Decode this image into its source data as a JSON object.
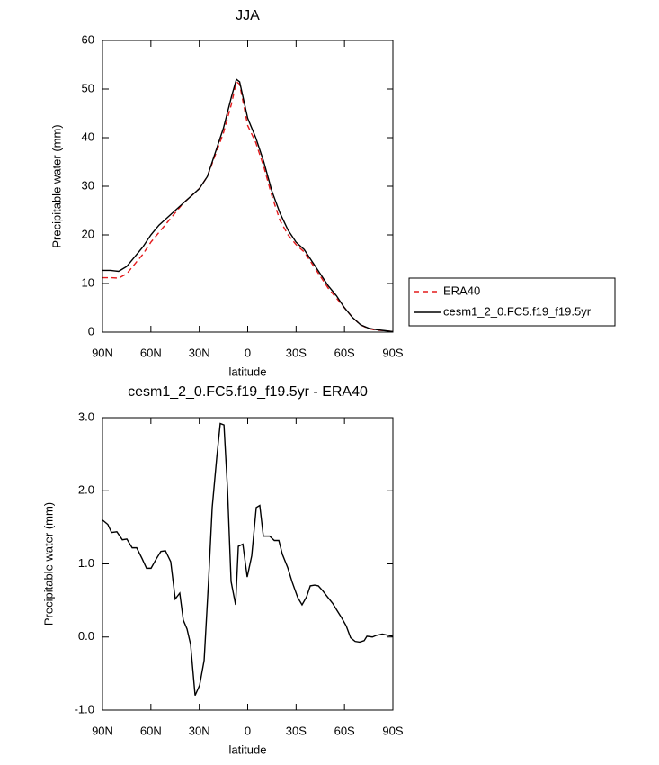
{
  "chart_data": [
    {
      "type": "line",
      "title": "JJA",
      "x_label": "latitude",
      "y_label": "Precipitable water (mm)",
      "x": [
        90,
        85,
        80,
        75,
        70,
        65,
        60,
        55,
        50,
        45,
        40,
        35,
        30,
        25,
        20,
        15,
        10,
        7,
        5,
        0,
        -5,
        -10,
        -15,
        -20,
        -25,
        -30,
        -35,
        -40,
        -45,
        -50,
        -55,
        -60,
        -65,
        -70,
        -75,
        -80,
        -85,
        -90
      ],
      "series": [
        {
          "name": "ERA40",
          "color": "#e41a1c",
          "dash": "dashed",
          "values": [
            11.2,
            11.2,
            11.1,
            12,
            14,
            16,
            18.5,
            20.5,
            22.5,
            24.5,
            26.5,
            28,
            29.5,
            32,
            36.5,
            41,
            47,
            51.5,
            51,
            42.5,
            39,
            34,
            28,
            23,
            20,
            18,
            16.5,
            14,
            11.5,
            9,
            7,
            5,
            3,
            1.5,
            0.7,
            0.4,
            0.3,
            0.1
          ]
        },
        {
          "name": "cesm1_2_0.FC5.f19_f19.5yr",
          "color": "#000000",
          "dash": "solid",
          "values": [
            12.7,
            12.7,
            12.5,
            13.5,
            15.5,
            17.5,
            20,
            22,
            23.5,
            25,
            26.5,
            28,
            29.5,
            32,
            37,
            42,
            48.5,
            52,
            51.5,
            44,
            40,
            35,
            29,
            24.5,
            21,
            18.5,
            17,
            14.5,
            12,
            9.5,
            7.5,
            5,
            3,
            1.5,
            0.8,
            0.5,
            0.3,
            0.1
          ]
        }
      ],
      "xlim": [
        90,
        -90
      ],
      "xticks": [
        {
          "value": 90,
          "label": "90N"
        },
        {
          "value": 60,
          "label": "60N"
        },
        {
          "value": 30,
          "label": "30N"
        },
        0,
        {
          "value": -30,
          "label": "30S"
        },
        {
          "value": -60,
          "label": "60S"
        },
        {
          "value": -90,
          "label": "90S"
        }
      ],
      "ylim": [
        0,
        60
      ],
      "yticks": [
        0,
        10,
        20,
        30,
        40,
        50,
        60
      ],
      "legend": "right"
    },
    {
      "type": "line",
      "title": "cesm1_2_0.FC5.f19_f19.5yr - ERA40",
      "x_label": "latitude",
      "y_label": "Precipitable water (mm)",
      "x": [
        90,
        86.7,
        84.4,
        81.1,
        77.7,
        74.9,
        71.6,
        68.8,
        65.4,
        62.7,
        59.9,
        56.6,
        53.8,
        51,
        47.7,
        44.9,
        42.1,
        39.9,
        37.6,
        35.4,
        32.6,
        29.8,
        27,
        24.2,
        22,
        19.2,
        17,
        14.7,
        12.5,
        10.3,
        7.5,
        5.8,
        3,
        0.3,
        -2.5,
        -5.3,
        -7.5,
        -9.7,
        -13.6,
        -16.5,
        -19.3,
        -21.5,
        -24.8,
        -27.6,
        -31,
        -33.7,
        -36.5,
        -38.8,
        -41.5,
        -43.8,
        -46.6,
        -49.4,
        -52.7,
        -54.9,
        -58.3,
        -61.1,
        -63.8,
        -66.6,
        -69.4,
        -72.2,
        -73.9,
        -77.3,
        -79.5,
        -83.4,
        -87.8,
        -90
      ],
      "series": [
        {
          "color": "#000000",
          "dash": "solid",
          "values": [
            1.6,
            1.54,
            1.43,
            1.44,
            1.33,
            1.34,
            1.22,
            1.22,
            1.07,
            0.94,
            0.94,
            1.07,
            1.17,
            1.18,
            1.03,
            0.52,
            0.6,
            0.23,
            0.11,
            -0.1,
            -0.8,
            -0.66,
            -0.32,
            0.79,
            1.77,
            2.45,
            2.92,
            2.9,
            2.02,
            0.76,
            0.44,
            1.24,
            1.27,
            0.82,
            1.11,
            1.77,
            1.8,
            1.38,
            1.38,
            1.32,
            1.32,
            1.13,
            0.95,
            0.75,
            0.54,
            0.44,
            0.55,
            0.7,
            0.71,
            0.7,
            0.63,
            0.55,
            0.46,
            0.38,
            0.26,
            0.15,
            -0.01,
            -0.06,
            -0.07,
            -0.05,
            0.01,
            0,
            0.02,
            0.04,
            0.02,
            0.01
          ]
        }
      ],
      "xlim": [
        90,
        -90
      ],
      "xticks": [
        {
          "value": 90,
          "label": "90N"
        },
        {
          "value": 60,
          "label": "60N"
        },
        {
          "value": 30,
          "label": "30N"
        },
        0,
        {
          "value": -30,
          "label": "30S"
        },
        {
          "value": -60,
          "label": "60S"
        },
        {
          "value": -90,
          "label": "90S"
        }
      ],
      "ylim": [
        -1,
        3
      ],
      "yticks": [
        {
          "value": -1,
          "label": "-1.0"
        },
        {
          "value": 0,
          "label": "0.0"
        },
        {
          "value": 1,
          "label": "1.0"
        },
        {
          "value": 2,
          "label": "2.0"
        },
        {
          "value": 3,
          "label": "3.0"
        }
      ]
    }
  ]
}
